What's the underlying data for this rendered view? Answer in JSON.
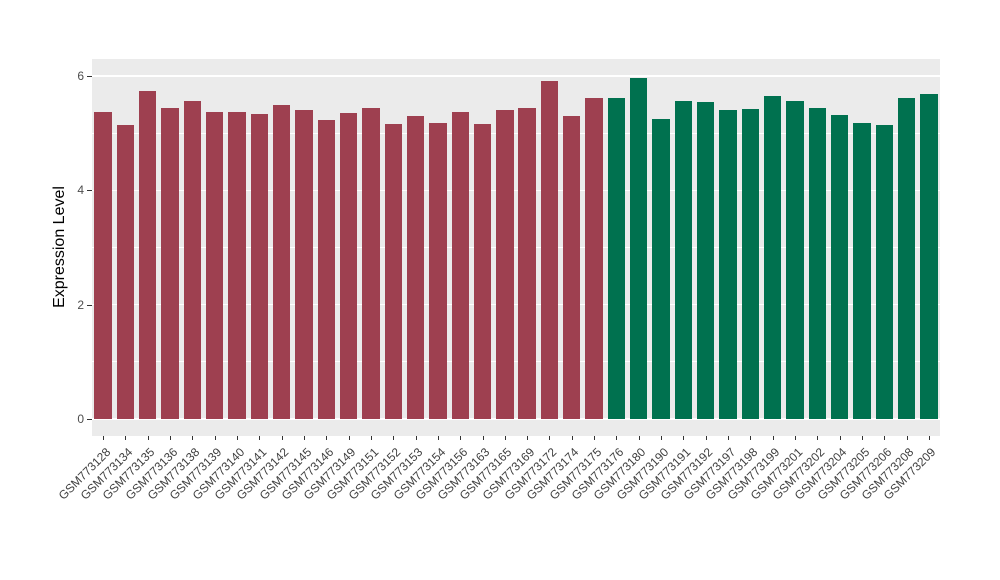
{
  "figure": {
    "background": "#ffffff",
    "panel_background": "#ebebeb",
    "gridline_color": "#ffffff"
  },
  "chart_data": {
    "type": "bar",
    "title": "",
    "xlabel": "",
    "ylabel": "Expression Level",
    "ylim": [
      0,
      6
    ],
    "yticks": [
      0,
      2,
      4,
      6
    ],
    "yticks_minor": [
      1,
      3,
      5
    ],
    "grid": true,
    "legend_position": "none",
    "categories": [
      "GSM773128",
      "GSM773134",
      "GSM773135",
      "GSM773136",
      "GSM773138",
      "GSM773139",
      "GSM773140",
      "GSM773141",
      "GSM773142",
      "GSM773145",
      "GSM773146",
      "GSM773149",
      "GSM773151",
      "GSM773152",
      "GSM773153",
      "GSM773154",
      "GSM773156",
      "GSM773163",
      "GSM773165",
      "GSM773169",
      "GSM773172",
      "GSM773174",
      "GSM773175",
      "GSM773176",
      "GSM773180",
      "GSM773190",
      "GSM773191",
      "GSM773192",
      "GSM773197",
      "GSM773198",
      "GSM773199",
      "GSM773201",
      "GSM773202",
      "GSM773204",
      "GSM773205",
      "GSM773206",
      "GSM773208",
      "GSM773209"
    ],
    "values": [
      5.38,
      5.15,
      5.74,
      5.45,
      5.57,
      5.37,
      5.37,
      5.33,
      5.49,
      5.4,
      5.23,
      5.35,
      5.45,
      5.16,
      5.3,
      5.18,
      5.38,
      5.16,
      5.4,
      5.44,
      5.91,
      5.3,
      5.62,
      5.61,
      5.97,
      5.25,
      5.56,
      5.54,
      5.4,
      5.42,
      5.66,
      5.56,
      5.45,
      5.32,
      5.18,
      5.15,
      5.62,
      5.68
    ],
    "group_split_index": 23,
    "group_colors": [
      "#9e4050",
      "#00714f"
    ]
  }
}
